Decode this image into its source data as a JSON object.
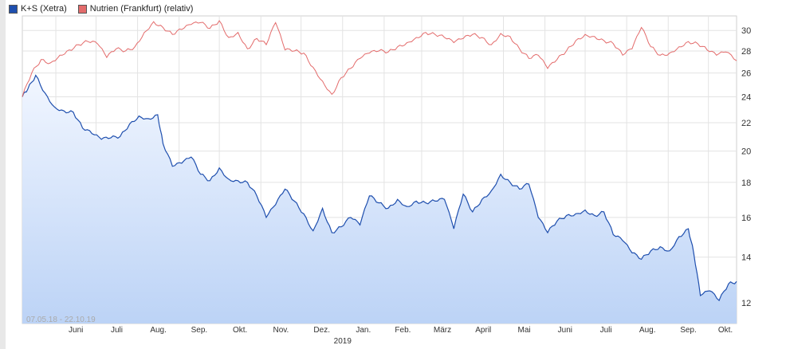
{
  "legend": [
    {
      "label": "K+S (Xetra)",
      "color": "#1f4fae"
    },
    {
      "label": "Nutrien (Frankfurt) (relativ)",
      "color": "#e36b6b"
    }
  ],
  "range_text": "07.05.18 - 22.10.19",
  "chart_data": {
    "type": "line",
    "title": "",
    "x_range": [
      "2018-05-07",
      "2019-10-22"
    ],
    "x_tick_labels": [
      "Juni",
      "Juli",
      "Aug.",
      "Sep.",
      "Okt.",
      "Nov.",
      "Dez.",
      "Jan.",
      "Feb.",
      "März",
      "April",
      "Mai",
      "Juni",
      "Juli",
      "Aug.",
      "Sep.",
      "Okt."
    ],
    "year_label": "2019",
    "y_ticks": [
      12,
      14,
      16,
      18,
      20,
      22,
      24,
      26,
      28,
      30
    ],
    "ylim": [
      11.2,
      31.5
    ],
    "y_scale": "log",
    "grid": true,
    "legend_position": "top-left",
    "series": [
      {
        "name": "K+S (Xetra)",
        "color": "#1f4fae",
        "fill": "area-gradient",
        "points": [
          [
            "2018-05-07",
            24.0
          ],
          [
            "2018-05-11",
            24.6
          ],
          [
            "2018-05-17",
            25.8
          ],
          [
            "2018-05-24",
            24.3
          ],
          [
            "2018-05-31",
            23.2
          ],
          [
            "2018-06-07",
            22.9
          ],
          [
            "2018-06-14",
            22.8
          ],
          [
            "2018-06-21",
            21.6
          ],
          [
            "2018-06-28",
            21.2
          ],
          [
            "2018-07-05",
            20.8
          ],
          [
            "2018-07-12",
            20.9
          ],
          [
            "2018-07-19",
            21.0
          ],
          [
            "2018-07-26",
            21.9
          ],
          [
            "2018-08-02",
            22.5
          ],
          [
            "2018-08-09",
            22.3
          ],
          [
            "2018-08-16",
            22.6
          ],
          [
            "2018-08-20",
            20.5
          ],
          [
            "2018-08-27",
            19.0
          ],
          [
            "2018-09-03",
            19.2
          ],
          [
            "2018-09-10",
            19.6
          ],
          [
            "2018-09-17",
            18.5
          ],
          [
            "2018-09-24",
            18.1
          ],
          [
            "2018-10-01",
            18.9
          ],
          [
            "2018-10-08",
            18.2
          ],
          [
            "2018-10-15",
            18.1
          ],
          [
            "2018-10-22",
            18.0
          ],
          [
            "2018-10-29",
            17.2
          ],
          [
            "2018-11-05",
            16.0
          ],
          [
            "2018-11-12",
            16.7
          ],
          [
            "2018-11-19",
            17.6
          ],
          [
            "2018-11-26",
            16.9
          ],
          [
            "2018-12-03",
            16.2
          ],
          [
            "2018-12-10",
            15.3
          ],
          [
            "2018-12-17",
            16.5
          ],
          [
            "2018-12-24",
            15.2
          ],
          [
            "2018-12-31",
            15.5
          ],
          [
            "2019-01-07",
            16.0
          ],
          [
            "2019-01-14",
            15.6
          ],
          [
            "2019-01-21",
            17.2
          ],
          [
            "2019-01-28",
            16.8
          ],
          [
            "2019-02-04",
            16.5
          ],
          [
            "2019-02-11",
            17.0
          ],
          [
            "2019-02-18",
            16.6
          ],
          [
            "2019-02-25",
            16.9
          ],
          [
            "2019-03-04",
            16.8
          ],
          [
            "2019-03-11",
            16.9
          ],
          [
            "2019-03-18",
            17.0
          ],
          [
            "2019-03-25",
            15.4
          ],
          [
            "2019-04-01",
            17.3
          ],
          [
            "2019-04-08",
            16.3
          ],
          [
            "2019-04-15",
            17.0
          ],
          [
            "2019-04-22",
            17.5
          ],
          [
            "2019-04-29",
            18.5
          ],
          [
            "2019-05-06",
            18.0
          ],
          [
            "2019-05-13",
            17.6
          ],
          [
            "2019-05-20",
            17.9
          ],
          [
            "2019-05-27",
            16.0
          ],
          [
            "2019-06-03",
            15.2
          ],
          [
            "2019-06-10",
            15.8
          ],
          [
            "2019-06-17",
            16.1
          ],
          [
            "2019-06-24",
            16.2
          ],
          [
            "2019-07-01",
            16.4
          ],
          [
            "2019-07-08",
            16.1
          ],
          [
            "2019-07-15",
            16.3
          ],
          [
            "2019-07-22",
            15.1
          ],
          [
            "2019-07-29",
            14.8
          ],
          [
            "2019-08-05",
            14.2
          ],
          [
            "2019-08-12",
            13.9
          ],
          [
            "2019-08-19",
            14.3
          ],
          [
            "2019-08-26",
            14.5
          ],
          [
            "2019-09-02",
            14.3
          ],
          [
            "2019-09-09",
            15.0
          ],
          [
            "2019-09-16",
            15.4
          ],
          [
            "2019-09-20",
            14.2
          ],
          [
            "2019-09-25",
            12.3
          ],
          [
            "2019-10-02",
            12.5
          ],
          [
            "2019-10-09",
            12.1
          ],
          [
            "2019-10-16",
            12.8
          ],
          [
            "2019-10-22",
            12.9
          ]
        ]
      },
      {
        "name": "Nutrien (Frankfurt) (relativ)",
        "color": "#e36b6b",
        "fill": "none",
        "points": [
          [
            "2018-05-07",
            24.0
          ],
          [
            "2018-05-14",
            26.0
          ],
          [
            "2018-05-21",
            27.2
          ],
          [
            "2018-05-28",
            26.9
          ],
          [
            "2018-06-04",
            27.6
          ],
          [
            "2018-06-11",
            28.1
          ],
          [
            "2018-06-18",
            28.6
          ],
          [
            "2018-06-25",
            28.9
          ],
          [
            "2018-07-02",
            28.7
          ],
          [
            "2018-07-09",
            27.4
          ],
          [
            "2018-07-16",
            28.2
          ],
          [
            "2018-07-23",
            28.0
          ],
          [
            "2018-07-30",
            28.4
          ],
          [
            "2018-08-06",
            29.8
          ],
          [
            "2018-08-13",
            30.9
          ],
          [
            "2018-08-20",
            30.3
          ],
          [
            "2018-08-27",
            29.6
          ],
          [
            "2018-09-03",
            30.1
          ],
          [
            "2018-09-10",
            30.6
          ],
          [
            "2018-09-17",
            30.8
          ],
          [
            "2018-09-24",
            30.2
          ],
          [
            "2018-10-01",
            31.0
          ],
          [
            "2018-10-08",
            29.3
          ],
          [
            "2018-10-15",
            29.8
          ],
          [
            "2018-10-22",
            28.2
          ],
          [
            "2018-10-29",
            29.2
          ],
          [
            "2018-11-05",
            28.6
          ],
          [
            "2018-11-12",
            30.8
          ],
          [
            "2018-11-19",
            28.1
          ],
          [
            "2018-11-26",
            28.0
          ],
          [
            "2018-12-03",
            27.8
          ],
          [
            "2018-12-10",
            26.5
          ],
          [
            "2018-12-17",
            25.3
          ],
          [
            "2018-12-24",
            24.2
          ],
          [
            "2018-12-31",
            25.6
          ],
          [
            "2019-01-07",
            26.4
          ],
          [
            "2019-01-14",
            27.3
          ],
          [
            "2019-01-21",
            27.8
          ],
          [
            "2019-01-28",
            28.0
          ],
          [
            "2019-02-04",
            27.9
          ],
          [
            "2019-02-11",
            28.4
          ],
          [
            "2019-02-18",
            28.8
          ],
          [
            "2019-02-25",
            29.3
          ],
          [
            "2019-03-04",
            29.8
          ],
          [
            "2019-03-11",
            29.6
          ],
          [
            "2019-03-18",
            29.3
          ],
          [
            "2019-03-25",
            28.8
          ],
          [
            "2019-04-01",
            29.2
          ],
          [
            "2019-04-08",
            29.6
          ],
          [
            "2019-04-15",
            29.3
          ],
          [
            "2019-04-22",
            28.6
          ],
          [
            "2019-04-29",
            29.7
          ],
          [
            "2019-05-06",
            29.4
          ],
          [
            "2019-05-13",
            28.2
          ],
          [
            "2019-05-20",
            27.3
          ],
          [
            "2019-05-27",
            27.6
          ],
          [
            "2019-06-03",
            26.4
          ],
          [
            "2019-06-10",
            27.2
          ],
          [
            "2019-06-17",
            28.0
          ],
          [
            "2019-06-24",
            29.0
          ],
          [
            "2019-07-01",
            29.6
          ],
          [
            "2019-07-08",
            29.4
          ],
          [
            "2019-07-15",
            29.0
          ],
          [
            "2019-07-22",
            28.7
          ],
          [
            "2019-07-29",
            27.6
          ],
          [
            "2019-08-05",
            28.2
          ],
          [
            "2019-08-12",
            30.3
          ],
          [
            "2019-08-19",
            28.4
          ],
          [
            "2019-08-26",
            27.6
          ],
          [
            "2019-09-02",
            27.8
          ],
          [
            "2019-09-09",
            28.4
          ],
          [
            "2019-09-16",
            28.9
          ],
          [
            "2019-09-23",
            28.7
          ],
          [
            "2019-09-30",
            28.1
          ],
          [
            "2019-10-07",
            27.6
          ],
          [
            "2019-10-14",
            27.9
          ],
          [
            "2019-10-22",
            27.1
          ]
        ]
      }
    ]
  }
}
